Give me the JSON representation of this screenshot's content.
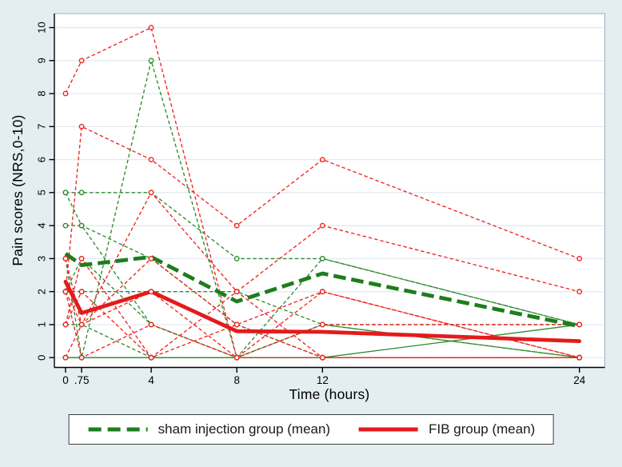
{
  "figure": {
    "background": "#e4edf0",
    "plot_background": "#ffffff",
    "plot_border_color": "#a3aeb5",
    "grid_color": "#e3ebf1",
    "axis_color": "#000000"
  },
  "chart_data": {
    "type": "line",
    "title": "",
    "xlabel": "Time (hours)",
    "ylabel": "Pain scores (NRS,0-10)",
    "x": [
      0,
      0.75,
      4,
      8,
      12,
      24
    ],
    "xtick_labels": [
      "0",
      ".75",
      "4",
      "8",
      "12",
      "24"
    ],
    "yticks": [
      0,
      1,
      2,
      3,
      4,
      5,
      6,
      7,
      8,
      9,
      10
    ],
    "ylim": [
      0,
      10
    ],
    "grid": "horizontal",
    "legend_position": "bottom-center",
    "series": [
      {
        "name": "sham injection group (mean)",
        "color": "#1d7d1d",
        "style": "dashed-thick",
        "values": [
          3.15,
          2.8,
          3.05,
          1.7,
          2.55,
          0.95
        ]
      },
      {
        "name": "FIB group (mean)",
        "color": "#e41a1c",
        "style": "solid-thick",
        "values": [
          2.3,
          1.35,
          2.0,
          0.8,
          0.78,
          0.5
        ]
      }
    ],
    "individuals": {
      "sham": {
        "color": "#2e8b2e",
        "style": "dashed-thin",
        "series": [
          {
            "values": [
              5,
              5,
              5,
              3,
              3,
              1
            ],
            "solid": false
          },
          {
            "values": [
              4,
              4,
              1,
              0,
              1,
              0
            ],
            "solid": false
          },
          {
            "values": [
              3,
              0,
              9,
              0,
              3,
              1
            ],
            "solid": false
          },
          {
            "values": [
              2,
              2,
              2,
              2,
              1,
              0
            ],
            "solid": false
          },
          {
            "values": [
              1,
              1,
              0,
              0,
              0,
              0
            ],
            "solid": false
          },
          {
            "values": [
              0,
              0,
              0,
              0,
              0,
              0
            ],
            "solid": true
          },
          {
            "values": [
              5,
              4,
              3,
              1,
              0,
              0
            ],
            "solid": false
          },
          {
            "values": [
              2,
              3,
              1,
              0,
              1,
              1
            ],
            "solid": false
          },
          {
            "values": [
              0,
              0,
              0,
              0,
              0,
              1
            ],
            "solid": true
          }
        ]
      },
      "fib": {
        "color": "#ee2420",
        "style": "dashed-thin",
        "series": [
          {
            "values": [
              8,
              9,
              10,
              0,
              2,
              0
            ],
            "solid": false
          },
          {
            "values": [
              2,
              7,
              6,
              4,
              6,
              3
            ],
            "solid": false
          },
          {
            "values": [
              3,
              1,
              5,
              2,
              4,
              2
            ],
            "solid": false
          },
          {
            "values": [
              2,
              1,
              3,
              1,
              0,
              0
            ],
            "solid": false
          },
          {
            "values": [
              2,
              0,
              1,
              0,
              1,
              1
            ],
            "solid": false
          },
          {
            "values": [
              1,
              2,
              0,
              2,
              0,
              0
            ],
            "solid": false
          },
          {
            "values": [
              0,
              1,
              2,
              0,
              0,
              0
            ],
            "solid": false
          },
          {
            "values": [
              1,
              3,
              0,
              1,
              2,
              0
            ],
            "solid": false
          }
        ]
      }
    }
  },
  "legend": {
    "items": [
      {
        "label": "sham injection group (mean)"
      },
      {
        "label": "FIB group (mean)"
      }
    ]
  }
}
